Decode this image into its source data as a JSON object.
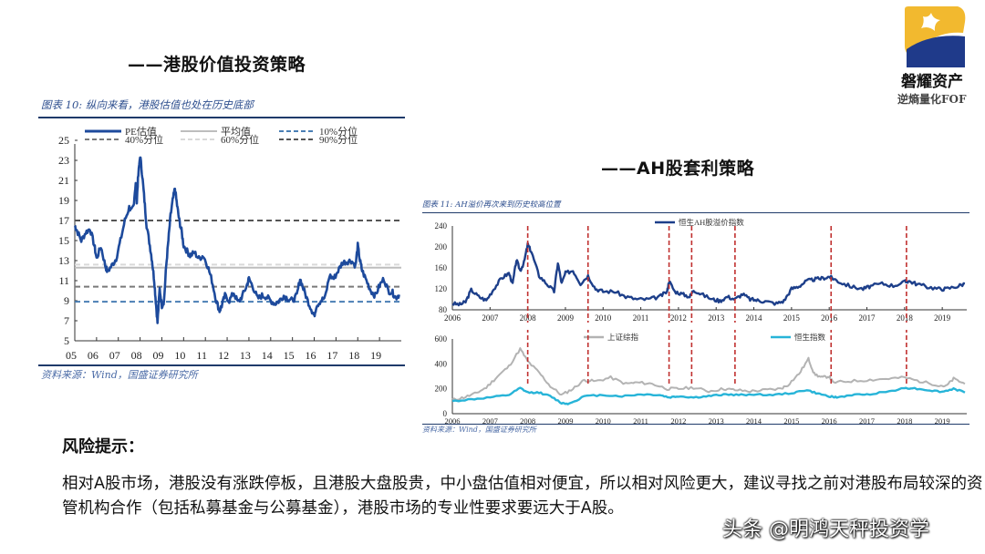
{
  "logo": {
    "name": "磐耀资产",
    "subtitle": "逆熵量化FOF",
    "colors": {
      "gold": "#f2b92f",
      "navy": "#1f3a8a"
    }
  },
  "sections": {
    "hk_value": "——港股价值投资策略",
    "ah_arb": "——AH股套利策略"
  },
  "figure10": {
    "caption": "图表 10:  纵向来看，港股估值也处在历史底部",
    "source": "资料来源：Wind，国盛证券研究所"
  },
  "figure11": {
    "caption": "图表 11:  AH溢价再次来到历史较高位置",
    "source": "资料来源：Wind，国盛证券研究所"
  },
  "risk": {
    "title": "风险提示：",
    "body": "相对A股市场，港股没有涨跌停板，且港股大盘股贵，中小盘估值相对便宜，所以相对风险更大，建议寻找之前对港股布局较深的资管机构合作（包括私募基金与公募基金），港股市场的专业性要求要远大于A股。"
  },
  "watermark": "头条 @明鸿天秤投资学",
  "chart_data": [
    {
      "id": "hk_pe",
      "type": "line",
      "title": "纵向来看，港股估值也处在历史底部",
      "xlabel": "",
      "ylabel": "",
      "ylim": [
        5,
        25
      ],
      "yticks": [
        5,
        7,
        9,
        11,
        13,
        15,
        17,
        19,
        21,
        23,
        25
      ],
      "categories": [
        "05",
        "06",
        "07",
        "08",
        "09",
        "10",
        "11",
        "12",
        "13",
        "14",
        "15",
        "16",
        "17",
        "18",
        "19"
      ],
      "grid": false,
      "legend_position": "top",
      "series": [
        {
          "name": "PE估值",
          "color": "#1d4a9c",
          "style": "solid",
          "x": [
            2005.0,
            2005.1,
            2005.3,
            2005.5,
            2005.7,
            2005.9,
            2006.0,
            2006.2,
            2006.4,
            2006.5,
            2006.7,
            2006.9,
            2007.1,
            2007.3,
            2007.5,
            2007.6,
            2007.7,
            2007.8,
            2007.85,
            2007.9,
            2008.0,
            2008.1,
            2008.2,
            2008.3,
            2008.45,
            2008.55,
            2008.65,
            2008.72,
            2008.8,
            2008.9,
            2009.0,
            2009.1,
            2009.2,
            2009.3,
            2009.4,
            2009.5,
            2009.6,
            2009.7,
            2009.8,
            2009.9,
            2010.0,
            2010.2,
            2010.3,
            2010.5,
            2010.7,
            2010.9,
            2011.1,
            2011.3,
            2011.5,
            2011.65,
            2011.75,
            2011.9,
            2012.1,
            2012.3,
            2012.5,
            2012.7,
            2012.9,
            2013.0,
            2013.2,
            2013.4,
            2013.6,
            2013.8,
            2014.0,
            2014.2,
            2014.4,
            2014.6,
            2014.8,
            2015.0,
            2015.2,
            2015.35,
            2015.5,
            2015.7,
            2015.9,
            2016.0,
            2016.1,
            2016.3,
            2016.5,
            2016.7,
            2016.9,
            2017.1,
            2017.3,
            2017.5,
            2017.7,
            2017.9,
            2018.0,
            2018.1,
            2018.2,
            2018.4,
            2018.6,
            2018.8,
            2019.0,
            2019.2,
            2019.4,
            2019.6,
            2019.75,
            2019.9
          ],
          "y": [
            16.5,
            16.0,
            15.0,
            15.8,
            16.2,
            14.5,
            13.2,
            14.4,
            12.5,
            11.9,
            12.5,
            13.2,
            15.0,
            17.0,
            18.3,
            17.9,
            18.5,
            20.8,
            19.0,
            21.0,
            23.5,
            21.5,
            19.0,
            16.5,
            14.5,
            13.0,
            11.0,
            9.0,
            6.8,
            10.2,
            8.5,
            9.0,
            12.5,
            15.0,
            17.5,
            19.0,
            20.2,
            18.5,
            17.0,
            16.0,
            14.5,
            13.8,
            13.5,
            13.8,
            13.2,
            13.5,
            12.5,
            11.0,
            9.0,
            8.0,
            8.5,
            9.5,
            9.0,
            9.8,
            8.8,
            9.5,
            10.5,
            11.2,
            10.3,
            9.2,
            9.5,
            9.4,
            9.0,
            8.7,
            9.0,
            9.5,
            9.2,
            9.0,
            9.5,
            11.2,
            10.2,
            9.0,
            8.0,
            7.5,
            8.5,
            9.0,
            9.3,
            11.5,
            11.2,
            12.0,
            12.8,
            12.9,
            13.0,
            12.5,
            14.5,
            13.0,
            12.0,
            11.0,
            10.0,
            9.5,
            10.5,
            11.2,
            10.0,
            9.8,
            9.3,
            9.6
          ]
        },
        {
          "name": "平均值",
          "color": "#bdbdbd",
          "style": "solid",
          "value": 12.3
        },
        {
          "name": "10%分位",
          "color": "#4a7fb5",
          "style": "dashed",
          "value": 8.9
        },
        {
          "name": "40%分位",
          "color": "#7a7a7a",
          "style": "dashed",
          "value": 10.4
        },
        {
          "name": "60%分位",
          "color": "#d9d9d9",
          "style": "dashed",
          "value": 12.6
        },
        {
          "name": "90%分位",
          "color": "#555555",
          "style": "dashed",
          "value": 17.0
        }
      ]
    },
    {
      "id": "ah_premium",
      "type": "line",
      "title": "AH溢价再次来到历史较高位置",
      "ylim": [
        80,
        240
      ],
      "yticks": [
        80,
        120,
        160,
        200,
        240
      ],
      "categories": [
        "2006",
        "2007",
        "2008",
        "2009",
        "2010",
        "2011",
        "2012",
        "2013",
        "2014",
        "2015",
        "2016",
        "2017",
        "2018",
        "2019"
      ],
      "legend_position": "top",
      "series": [
        {
          "name": "恒生AH股溢价指数",
          "color": "#1d3f8a",
          "x": [
            2006.0,
            2006.2,
            2006.35,
            2006.5,
            2006.7,
            2006.9,
            2007.1,
            2007.3,
            2007.5,
            2007.6,
            2007.7,
            2007.8,
            2007.9,
            2008.0,
            2008.1,
            2008.3,
            2008.5,
            2008.7,
            2008.8,
            2008.9,
            2009.0,
            2009.2,
            2009.4,
            2009.6,
            2009.8,
            2010.0,
            2010.3,
            2010.6,
            2010.9,
            2011.2,
            2011.5,
            2011.7,
            2011.75,
            2011.9,
            2012.1,
            2012.3,
            2012.4,
            2012.6,
            2012.9,
            2013.1,
            2013.3,
            2013.5,
            2013.7,
            2013.9,
            2014.1,
            2014.3,
            2014.6,
            2014.8,
            2015.0,
            2015.2,
            2015.4,
            2015.6,
            2015.8,
            2016.0,
            2016.1,
            2016.3,
            2016.6,
            2016.9,
            2017.1,
            2017.4,
            2017.7,
            2018.0,
            2018.1,
            2018.3,
            2018.6,
            2018.9,
            2019.1,
            2019.4,
            2019.6
          ],
          "y": [
            92,
            90,
            95,
            118,
            105,
            98,
            120,
            140,
            150,
            130,
            175,
            155,
            170,
            205,
            190,
            145,
            130,
            115,
            170,
            130,
            150,
            155,
            130,
            145,
            120,
            115,
            115,
            105,
            100,
            100,
            105,
            115,
            135,
            115,
            110,
            105,
            118,
            110,
            100,
            97,
            105,
            100,
            110,
            100,
            98,
            96,
            92,
            97,
            120,
            125,
            135,
            138,
            140,
            143,
            140,
            132,
            124,
            120,
            125,
            130,
            126,
            133,
            135,
            130,
            124,
            120,
            120,
            125,
            130
          ]
        }
      ],
      "annotations": {
        "red_dashed_x": [
          2008.0,
          2009.6,
          2011.75,
          2012.35,
          2013.5,
          2016.05,
          2018.05
        ],
        "color": "#c0302f"
      }
    },
    {
      "id": "index_compare",
      "type": "line",
      "ylim": [
        0,
        600
      ],
      "yticks": [
        0,
        200,
        400,
        600
      ],
      "categories": [
        "2006",
        "2007",
        "2008",
        "2009",
        "2010",
        "2011",
        "2012",
        "2013",
        "2014",
        "2015",
        "2016",
        "2017",
        "2018",
        "2019"
      ],
      "legend_position": "top",
      "series": [
        {
          "name": "上证综指",
          "color": "#b3b3b3",
          "x": [
            2006.0,
            2006.3,
            2006.6,
            2006.9,
            2007.2,
            2007.5,
            2007.8,
            2008.0,
            2008.3,
            2008.6,
            2008.9,
            2009.2,
            2009.5,
            2009.8,
            2010.2,
            2010.6,
            2010.9,
            2011.3,
            2011.7,
            2012.0,
            2012.4,
            2012.8,
            2013.2,
            2013.5,
            2013.9,
            2014.3,
            2014.7,
            2014.9,
            2015.2,
            2015.45,
            2015.6,
            2015.8,
            2016.0,
            2016.1,
            2016.5,
            2017.0,
            2017.5,
            2018.0,
            2018.4,
            2018.9,
            2019.1,
            2019.3,
            2019.6
          ],
          "y": [
            110,
            130,
            160,
            210,
            300,
            380,
            520,
            420,
            330,
            220,
            150,
            200,
            270,
            260,
            290,
            240,
            250,
            240,
            200,
            200,
            210,
            180,
            200,
            190,
            180,
            190,
            200,
            230,
            320,
            440,
            320,
            290,
            300,
            250,
            260,
            270,
            280,
            290,
            260,
            230,
            220,
            280,
            240
          ]
        },
        {
          "name": "恒生指数",
          "color": "#27b4d8",
          "x": [
            2006.0,
            2006.5,
            2007.0,
            2007.5,
            2007.8,
            2008.0,
            2008.3,
            2008.6,
            2008.9,
            2009.1,
            2009.5,
            2010.0,
            2010.5,
            2011.0,
            2011.5,
            2011.75,
            2012.0,
            2012.4,
            2012.8,
            2013.2,
            2013.6,
            2014.0,
            2014.5,
            2015.0,
            2015.4,
            2015.7,
            2016.0,
            2016.2,
            2016.6,
            2017.0,
            2017.5,
            2018.0,
            2018.2,
            2018.6,
            2019.0,
            2019.3,
            2019.6
          ],
          "y": [
            100,
            115,
            130,
            150,
            205,
            170,
            170,
            140,
            85,
            80,
            140,
            150,
            140,
            155,
            150,
            130,
            140,
            130,
            140,
            155,
            150,
            155,
            150,
            165,
            190,
            160,
            140,
            130,
            150,
            155,
            175,
            205,
            205,
            190,
            175,
            200,
            170
          ]
        }
      ],
      "annotations": {
        "red_dashed_x": [
          2008.0,
          2009.6,
          2011.75,
          2012.35,
          2013.5,
          2016.05,
          2018.05
        ],
        "color": "#c0302f"
      }
    }
  ]
}
